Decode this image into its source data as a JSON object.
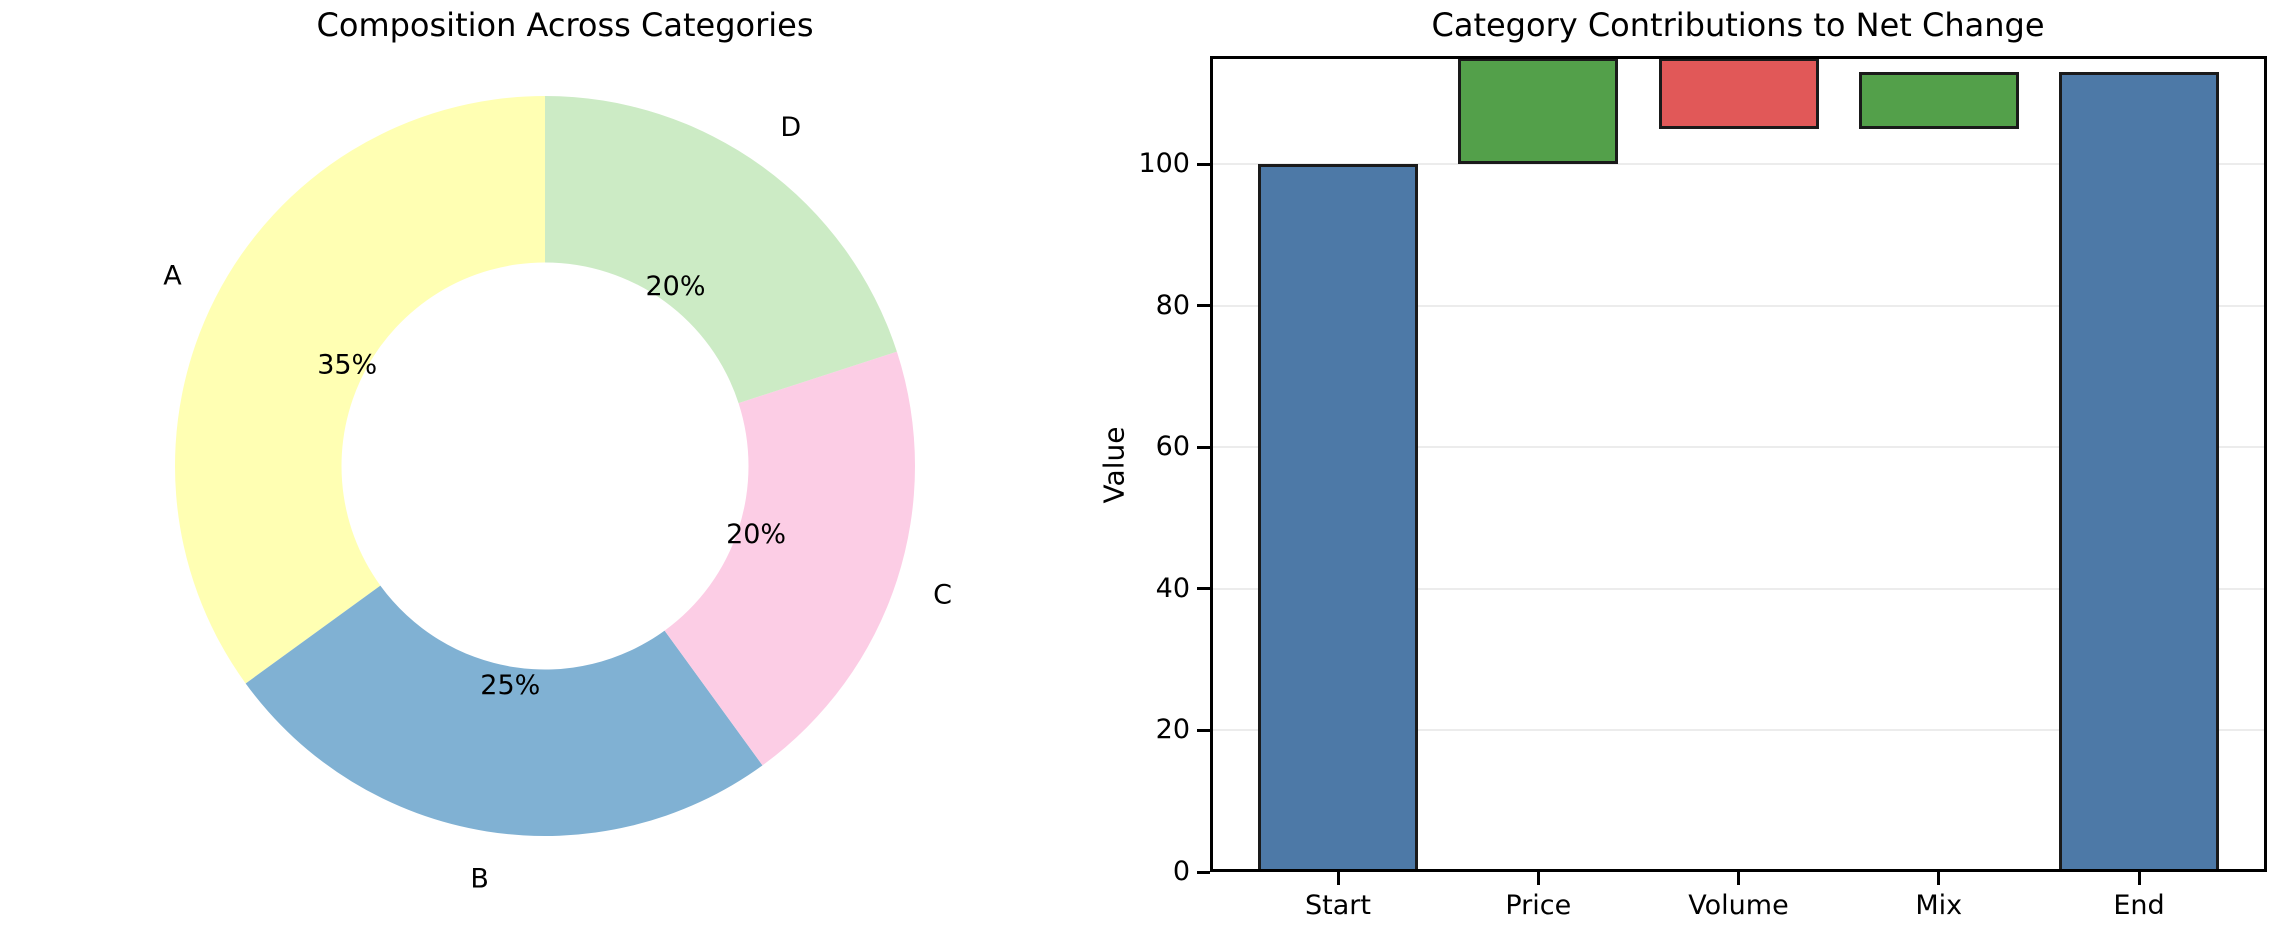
{
  "figure": {
    "background": "#ffffff",
    "text_color": "#000000"
  },
  "chart_data": [
    {
      "type": "pie",
      "subtype": "donut",
      "title": "Composition Across Categories",
      "labels": [
        "A",
        "B",
        "C",
        "D"
      ],
      "values": [
        35,
        25,
        20,
        20
      ],
      "pct_labels": [
        "35%",
        "25%",
        "20%",
        "20%"
      ],
      "colors": [
        "#ffffb3",
        "#80b1d3",
        "#fccde5",
        "#ccebc5"
      ],
      "start_angle": 90,
      "counterclock": true,
      "inner_ratio": 0.55,
      "pct_distance": 0.6,
      "label_distance": 1.13,
      "legend": "none"
    },
    {
      "type": "bar",
      "subtype": "waterfall",
      "title": "Category Contributions to Net Change",
      "xlabel": "",
      "ylabel": "Value",
      "categories": [
        "Start",
        "Price",
        "Volume",
        "Mix",
        "End"
      ],
      "bars": [
        {
          "label": "Start",
          "kind": "total",
          "from": 0,
          "to": 100,
          "delta": 100
        },
        {
          "label": "Price",
          "kind": "increase",
          "from": 100,
          "to": 115,
          "delta": 15
        },
        {
          "label": "Volume",
          "kind": "decrease",
          "from": 115,
          "to": 105,
          "delta": -10
        },
        {
          "label": "Mix",
          "kind": "increase",
          "from": 105,
          "to": 113,
          "delta": 8
        },
        {
          "label": "End",
          "kind": "total",
          "from": 0,
          "to": 113,
          "delta": 113
        }
      ],
      "colors": {
        "total": "#4d79a7",
        "increase": "#53a04a",
        "decrease": "#e15858",
        "edge": "#1a1a1a",
        "grid": "#ececec"
      },
      "yticks": [
        0,
        20,
        40,
        60,
        80,
        100
      ],
      "ylim": [
        0,
        115.3
      ],
      "grid": true,
      "legend": "none"
    }
  ]
}
